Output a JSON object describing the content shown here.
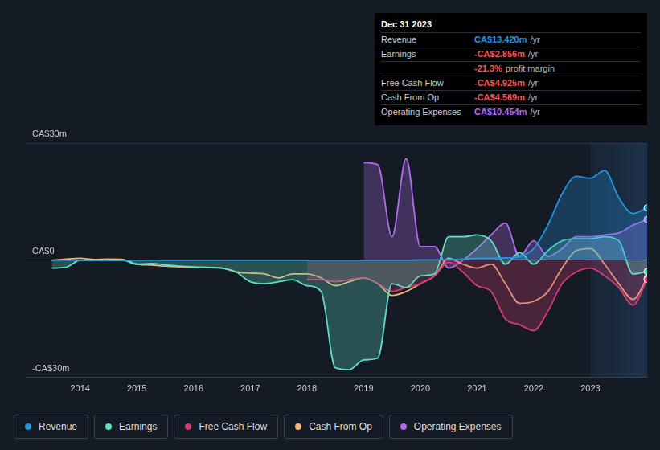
{
  "chart_data": {
    "type": "line",
    "x": [
      2013.5,
      2013.75,
      2014,
      2014.25,
      2014.5,
      2014.75,
      2015,
      2015.25,
      2015.5,
      2015.75,
      2016,
      2016.25,
      2016.5,
      2016.75,
      2017,
      2017.25,
      2017.5,
      2017.75,
      2018,
      2018.25,
      2018.5,
      2018.75,
      2019,
      2019.25,
      2019.5,
      2019.75,
      2020,
      2020.25,
      2020.5,
      2020.75,
      2021,
      2021.25,
      2021.5,
      2021.75,
      2022,
      2022.25,
      2022.5,
      2022.75,
      2023,
      2023.25,
      2023.5,
      2023.75,
      2024
    ],
    "xlim": [
      2013.04,
      2024
    ],
    "xticks": [
      2014,
      2015,
      2016,
      2017,
      2018,
      2019,
      2020,
      2021,
      2022,
      2023
    ],
    "ylim": [
      -30,
      30
    ],
    "yticks": [
      {
        "value": -30,
        "label": "-CA$30m"
      },
      {
        "value": 0,
        "label": "CA$0"
      },
      {
        "value": 30,
        "label": "CA$30m"
      }
    ],
    "grid": true,
    "legend": "bottom",
    "series": [
      {
        "name": "Revenue",
        "color": "#2394df",
        "type": "area",
        "values": [
          0,
          0,
          0,
          0,
          0,
          0,
          0,
          0,
          0,
          0,
          0,
          0,
          0,
          0,
          0,
          0,
          0,
          0,
          0,
          0,
          0,
          0,
          0,
          0,
          0,
          0,
          0.1,
          0.1,
          0.2,
          0.3,
          0.5,
          0.5,
          0.6,
          1.0,
          3,
          9,
          17,
          21.5,
          21,
          23,
          16,
          12,
          13.42
        ]
      },
      {
        "name": "Earnings",
        "color": "#5fe0c6",
        "type": "area",
        "values": [
          -2,
          -1.8,
          0,
          0,
          0,
          0,
          -1,
          -0.8,
          -1.2,
          -1.5,
          -1.7,
          -1.8,
          -2,
          -3,
          -5.5,
          -6,
          -5.5,
          -5,
          -6.5,
          -8,
          -27.5,
          -28,
          -25.5,
          -25,
          -6,
          -7,
          -4,
          -3.5,
          6,
          6,
          6.5,
          5,
          -1,
          2,
          -1,
          2.5,
          5,
          5.5,
          5.5,
          6,
          5,
          -3.5,
          -2.856
        ]
      },
      {
        "name": "Free Cash Flow",
        "color": "#d13c75",
        "type": "area",
        "values": [
          null,
          null,
          null,
          null,
          null,
          null,
          null,
          null,
          null,
          null,
          null,
          null,
          null,
          null,
          null,
          null,
          null,
          null,
          -5,
          -5,
          -5.5,
          -5,
          -4.5,
          -6,
          -8,
          -7,
          -6,
          -4,
          -0.5,
          -3,
          -6.5,
          -8,
          -15,
          -16.5,
          -18,
          -13,
          -6,
          -3,
          -2,
          -4,
          -7,
          -11.5,
          -4.925
        ]
      },
      {
        "name": "Cash From Op",
        "color": "#f2b274",
        "type": "line",
        "values": [
          0,
          0.3,
          0.5,
          0.2,
          0.3,
          0.2,
          -1,
          -1.2,
          -1.5,
          -1.7,
          -1.8,
          -1.9,
          -2,
          -3,
          -3.3,
          -3.5,
          -4.5,
          -3.5,
          -3.5,
          -4.5,
          -6.5,
          -5.5,
          -4.5,
          -6,
          -9,
          -8,
          -6,
          -4,
          0.5,
          -1,
          -2,
          -1,
          -6,
          -11,
          -10.5,
          -8,
          -2,
          2.5,
          3,
          -1,
          -6,
          -10,
          -4.569
        ]
      },
      {
        "name": "Operating Expenses",
        "color": "#b36cf0",
        "type": "area",
        "values": [
          null,
          null,
          null,
          null,
          null,
          null,
          null,
          null,
          null,
          null,
          null,
          null,
          null,
          null,
          null,
          null,
          null,
          null,
          null,
          null,
          null,
          null,
          25,
          24.5,
          6,
          26,
          3.5,
          3.5,
          -2,
          0,
          3,
          6.5,
          9.5,
          1,
          5,
          1,
          3,
          6,
          6,
          6.5,
          7,
          9,
          10.454
        ]
      }
    ],
    "annotations": {
      "title": "Dec 31 2023",
      "rows": [
        {
          "label": "Revenue",
          "value": "CA$13.420m",
          "unit": "/yr"
        },
        {
          "label": "Earnings",
          "value": "-CA$2.856m",
          "unit": "/yr"
        },
        {
          "value": "-21.3%",
          "unit": "profit margin"
        },
        {
          "label": "Free Cash Flow",
          "value": "-CA$4.925m",
          "unit": "/yr"
        },
        {
          "label": "Cash From Op",
          "value": "-CA$4.569m",
          "unit": "/yr"
        },
        {
          "label": "Operating Expenses",
          "value": "CA$10.454m",
          "unit": "/yr"
        }
      ]
    }
  }
}
